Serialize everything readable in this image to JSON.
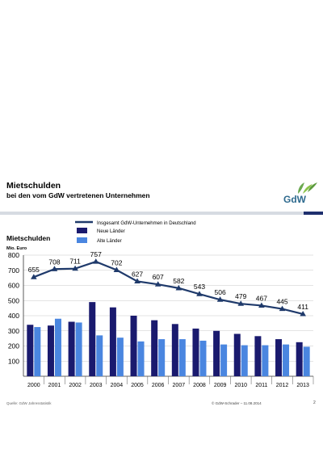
{
  "header": {
    "title": "Mietschulden",
    "subtitle": "bei den vom GdW vertretenen Unternehmen",
    "logo_text": "GdW"
  },
  "footer": {
    "source": "Quelle: GdW Jahresstatistik",
    "copyright": "© GdW-Schrader – 11.08.2014",
    "page_number": "2"
  },
  "colors": {
    "neue": "#1a1a6e",
    "alte": "#4a86e0",
    "line": "#1f3a6b",
    "logo_green": "#6aa84f",
    "rule_dark": "#1e2f6e",
    "rule_light": "#d6dbe2"
  },
  "chart_data": {
    "type": "bar",
    "title": "Mietschulden",
    "ylabel": "Mio. Euro",
    "ylim": [
      0,
      800
    ],
    "yticks": [
      100,
      200,
      300,
      400,
      500,
      600,
      700,
      800
    ],
    "grid": true,
    "legend_position": "top-right",
    "categories": [
      "2000",
      "2001",
      "2002",
      "2003",
      "2004",
      "2005",
      "2006",
      "2007",
      "2008",
      "2009",
      "2010",
      "2011",
      "2012",
      "2013"
    ],
    "series": [
      {
        "name": "Neue Länder",
        "type": "bar",
        "values": [
          340,
          335,
          360,
          490,
          455,
          400,
          370,
          345,
          315,
          300,
          280,
          265,
          245,
          225
        ]
      },
      {
        "name": "Alte Länder",
        "type": "bar",
        "values": [
          325,
          380,
          355,
          270,
          255,
          230,
          245,
          245,
          235,
          210,
          205,
          205,
          210,
          195
        ]
      },
      {
        "name": "Insgesamt GdW-Unternehmen in Deutschland",
        "type": "line",
        "values": [
          655,
          708,
          711,
          757,
          702,
          627,
          607,
          582,
          543,
          506,
          479,
          467,
          445,
          411
        ]
      }
    ]
  }
}
